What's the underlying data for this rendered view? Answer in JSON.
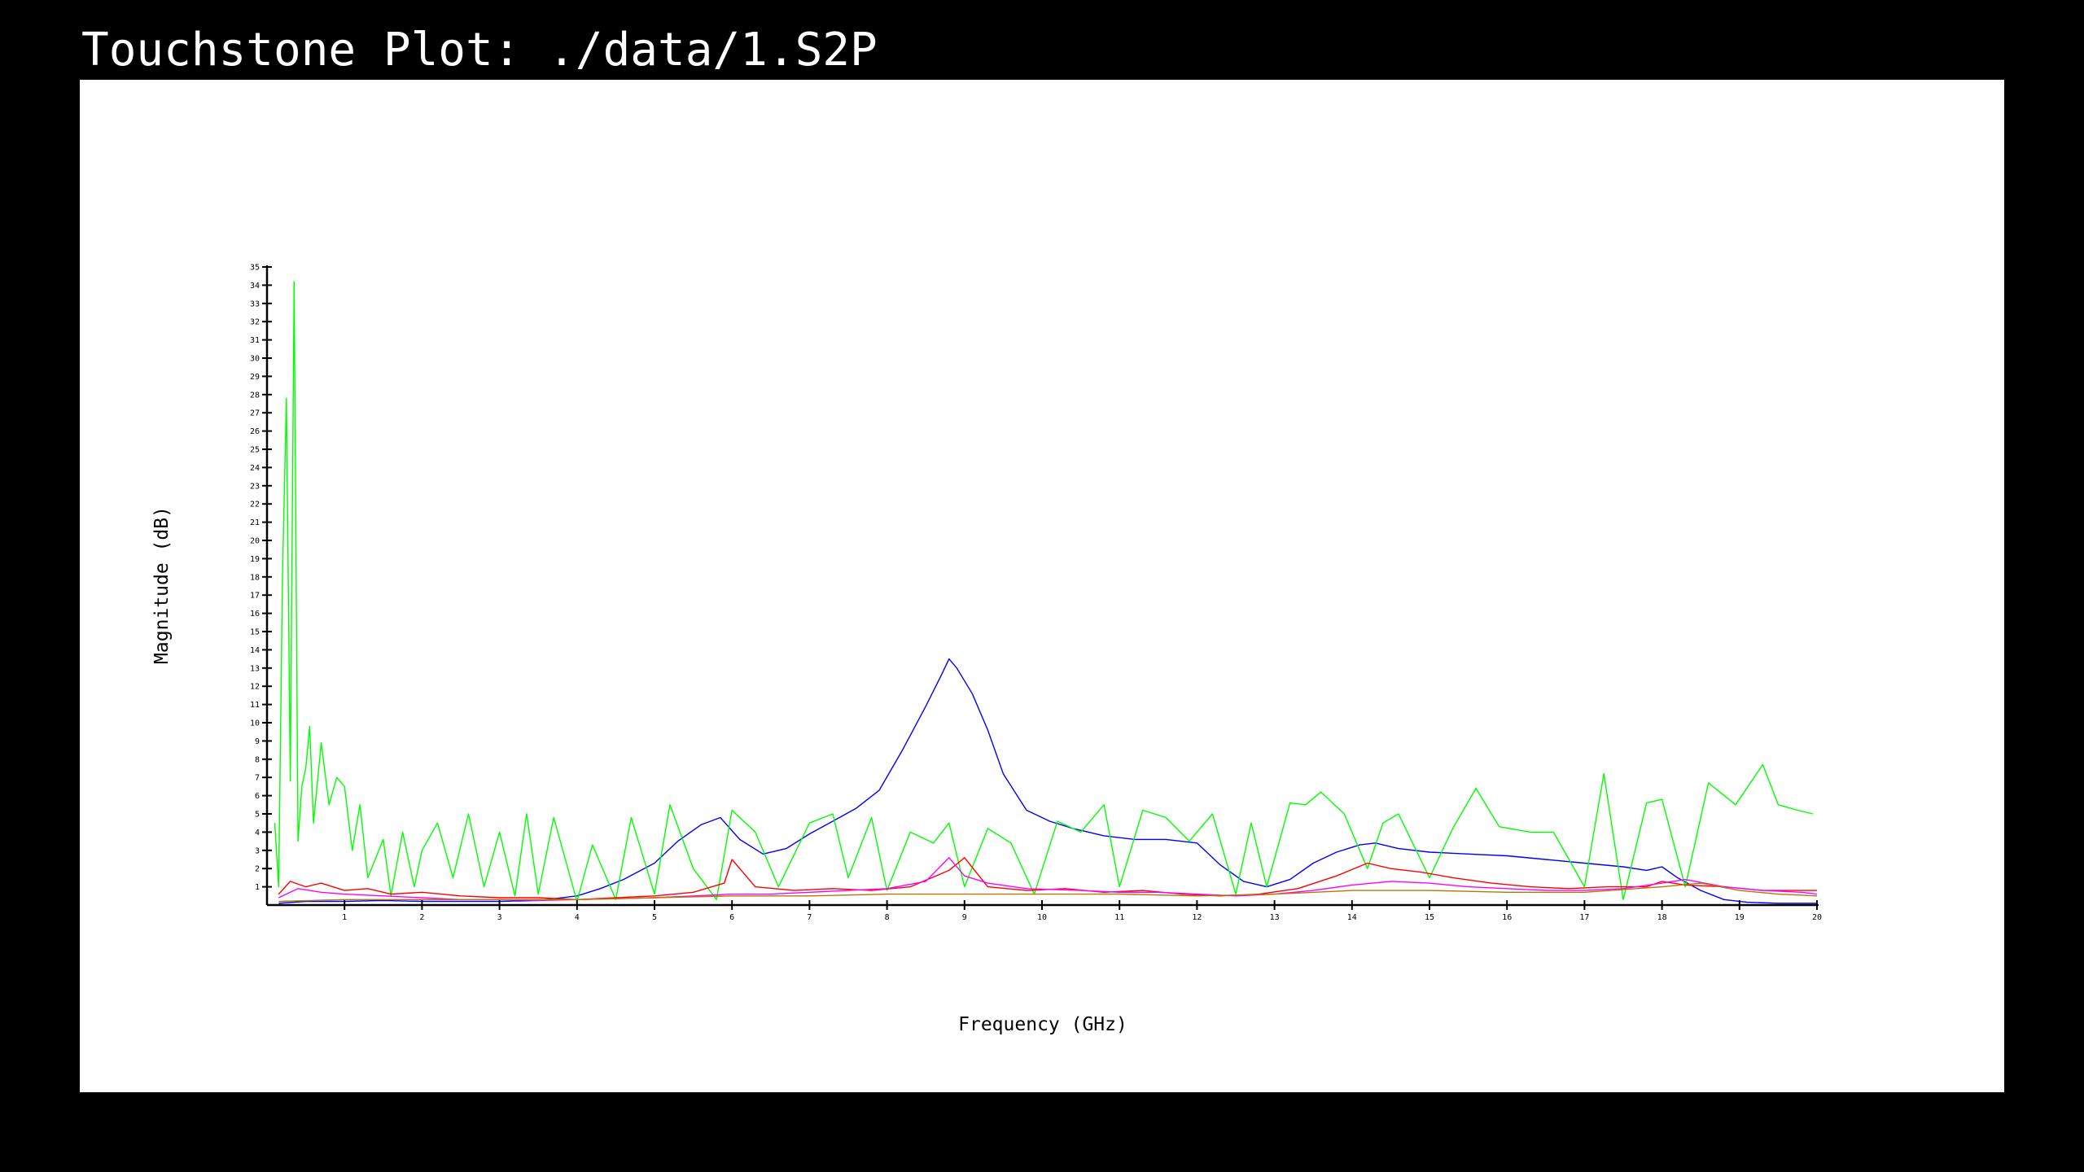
{
  "window": {
    "title": "Touchstone Plot: ./data/1.S2P"
  },
  "colors": {
    "background": "#000000",
    "plot_background": "#ffffff",
    "axis": "#000000"
  },
  "chart_data": {
    "type": "line",
    "title": "",
    "xlabel": "Frequency (GHz)",
    "ylabel": "Magnitude (dB)",
    "xlim": [
      0,
      20
    ],
    "ylim": [
      0,
      35
    ],
    "xticks": [
      1,
      2,
      3,
      4,
      5,
      6,
      7,
      8,
      9,
      10,
      11,
      12,
      13,
      14,
      15,
      16,
      17,
      18,
      19,
      20
    ],
    "yticks": [
      1,
      2,
      3,
      4,
      5,
      6,
      7,
      8,
      9,
      10,
      11,
      12,
      13,
      14,
      15,
      16,
      17,
      18,
      19,
      20,
      21,
      22,
      23,
      24,
      25,
      26,
      27,
      28,
      29,
      30,
      31,
      32,
      33,
      34,
      35
    ],
    "grid": false,
    "legend": "none",
    "series": [
      {
        "color": "#0000ff",
        "x": [
          0.15,
          0.5,
          1,
          1.5,
          2,
          2.5,
          3,
          3.5,
          4,
          4.3,
          4.6,
          5,
          5.3,
          5.6,
          5.85,
          6.1,
          6.4,
          6.7,
          7,
          7.3,
          7.6,
          7.9,
          8.2,
          8.5,
          8.7,
          8.8,
          8.9,
          9.1,
          9.3,
          9.5,
          9.8,
          10.1,
          10.4,
          10.8,
          11.2,
          11.6,
          12,
          12.3,
          12.6,
          12.9,
          13.2,
          13.5,
          13.8,
          14.1,
          14.3,
          14.6,
          15,
          15.5,
          16,
          16.5,
          17,
          17.5,
          17.8,
          18,
          18.2,
          18.5,
          18.8,
          19.1,
          19.5,
          20
        ],
        "y": [
          0.1,
          0.2,
          0.2,
          0.25,
          0.2,
          0.2,
          0.2,
          0.25,
          0.5,
          0.9,
          1.4,
          2.3,
          3.5,
          4.4,
          4.8,
          3.6,
          2.8,
          3.1,
          3.9,
          4.6,
          5.3,
          6.3,
          8.5,
          10.9,
          12.6,
          13.5,
          13.0,
          11.6,
          9.6,
          7.2,
          5.2,
          4.6,
          4.2,
          3.8,
          3.6,
          3.6,
          3.4,
          2.2,
          1.3,
          1.0,
          1.4,
          2.3,
          2.9,
          3.3,
          3.4,
          3.1,
          2.9,
          2.8,
          2.7,
          2.5,
          2.3,
          2.1,
          1.9,
          2.1,
          1.5,
          0.8,
          0.3,
          0.15,
          0.1,
          0.1
        ]
      },
      {
        "color": "#00ff00",
        "x": [
          0.1,
          0.15,
          0.2,
          0.25,
          0.3,
          0.35,
          0.4,
          0.45,
          0.5,
          0.55,
          0.6,
          0.7,
          0.8,
          0.9,
          1.0,
          1.1,
          1.2,
          1.3,
          1.5,
          1.6,
          1.75,
          1.9,
          2.0,
          2.2,
          2.4,
          2.6,
          2.8,
          3.0,
          3.2,
          3.35,
          3.5,
          3.7,
          4.0,
          4.2,
          4.5,
          4.7,
          5.0,
          5.2,
          5.5,
          5.8,
          6.0,
          6.3,
          6.6,
          7.0,
          7.3,
          7.5,
          7.8,
          8.0,
          8.3,
          8.6,
          8.8,
          9.0,
          9.3,
          9.6,
          9.9,
          10.2,
          10.5,
          10.8,
          11.0,
          11.3,
          11.6,
          11.9,
          12.2,
          12.5,
          12.7,
          12.9,
          13.2,
          13.4,
          13.6,
          13.9,
          14.2,
          14.4,
          14.6,
          15.0,
          15.3,
          15.6,
          15.9,
          16.3,
          16.6,
          17.0,
          17.25,
          17.5,
          17.8,
          18.0,
          18.3,
          18.6,
          18.95,
          19.3,
          19.5,
          19.75,
          19.95
        ],
        "y": [
          4.5,
          1.0,
          18,
          27.8,
          6.8,
          34.2,
          3.5,
          6.5,
          7.5,
          9.8,
          4.5,
          8.9,
          5.5,
          7.0,
          6.5,
          3.0,
          5.5,
          1.5,
          3.6,
          0.5,
          4.0,
          1.0,
          3.0,
          4.5,
          1.5,
          5.0,
          1.0,
          4.0,
          0.5,
          5.0,
          0.6,
          4.8,
          0.2,
          3.3,
          0.3,
          4.8,
          0.6,
          5.5,
          2.0,
          0.3,
          5.2,
          4.0,
          1.0,
          4.5,
          5.0,
          1.5,
          4.8,
          0.8,
          4.0,
          3.4,
          4.5,
          1.0,
          4.2,
          3.4,
          0.6,
          4.6,
          4.0,
          5.5,
          1.0,
          5.2,
          4.8,
          3.5,
          5.0,
          0.6,
          4.5,
          1.0,
          5.6,
          5.5,
          6.2,
          5.0,
          2.0,
          4.5,
          5.0,
          1.5,
          4.2,
          6.4,
          4.3,
          4.0,
          4.0,
          1.0,
          7.2,
          0.3,
          5.6,
          5.8,
          1.0,
          6.7,
          5.5,
          7.7,
          5.5,
          5.2,
          5.0
        ]
      },
      {
        "color": "#ff0000",
        "x": [
          0.15,
          0.3,
          0.5,
          0.7,
          1.0,
          1.3,
          1.6,
          2.0,
          2.5,
          3.0,
          3.5,
          4.0,
          4.5,
          5.0,
          5.5,
          5.9,
          6.0,
          6.3,
          6.8,
          7.3,
          7.8,
          8.3,
          8.8,
          9.0,
          9.3,
          9.8,
          10.3,
          10.8,
          11.3,
          11.8,
          12.3,
          12.8,
          13.3,
          13.8,
          14.2,
          14.5,
          14.9,
          15.3,
          15.8,
          16.3,
          16.8,
          17.3,
          17.8,
          18.0,
          18.3,
          18.8,
          19.3,
          19.8,
          20
        ],
        "y": [
          0.6,
          1.3,
          1.0,
          1.2,
          0.8,
          0.9,
          0.6,
          0.7,
          0.5,
          0.4,
          0.4,
          0.3,
          0.4,
          0.5,
          0.7,
          1.2,
          2.5,
          1.0,
          0.8,
          0.9,
          0.8,
          1.0,
          1.9,
          2.6,
          1.0,
          0.8,
          0.9,
          0.7,
          0.8,
          0.6,
          0.5,
          0.6,
          0.9,
          1.6,
          2.3,
          2.0,
          1.8,
          1.5,
          1.2,
          1.0,
          0.9,
          1.0,
          1.0,
          1.3,
          1.1,
          1.0,
          0.8,
          0.8,
          0.8
        ]
      },
      {
        "color": "#ff00ff",
        "x": [
          0.15,
          0.4,
          0.7,
          1.0,
          1.5,
          2.0,
          2.5,
          3.0,
          3.5,
          4.0,
          4.5,
          5.0,
          5.5,
          6.0,
          6.5,
          7.0,
          7.5,
          8.0,
          8.5,
          8.8,
          9.0,
          9.3,
          9.8,
          10.5,
          11.0,
          11.5,
          12.0,
          12.5,
          13.0,
          13.5,
          14.0,
          14.5,
          15.0,
          15.5,
          16.0,
          16.5,
          17.0,
          17.5,
          18.0,
          18.3,
          18.8,
          19.3,
          19.8,
          20
        ],
        "y": [
          0.4,
          0.9,
          0.7,
          0.6,
          0.5,
          0.4,
          0.3,
          0.3,
          0.25,
          0.3,
          0.35,
          0.4,
          0.5,
          0.6,
          0.6,
          0.7,
          0.8,
          0.9,
          1.3,
          2.6,
          1.6,
          1.2,
          0.9,
          0.8,
          0.7,
          0.7,
          0.6,
          0.5,
          0.6,
          0.8,
          1.1,
          1.3,
          1.2,
          1.0,
          0.9,
          0.8,
          0.8,
          0.9,
          1.2,
          1.4,
          1.0,
          0.8,
          0.7,
          0.6
        ]
      },
      {
        "color": "#b47800",
        "x": [
          0.15,
          1,
          2,
          3,
          4,
          5,
          6,
          7,
          8,
          9,
          10,
          11,
          12,
          13,
          14,
          15,
          16,
          17,
          18,
          18.5,
          19,
          19.5,
          20
        ],
        "y": [
          0.2,
          0.3,
          0.3,
          0.3,
          0.3,
          0.4,
          0.5,
          0.5,
          0.6,
          0.6,
          0.6,
          0.6,
          0.5,
          0.6,
          0.8,
          0.8,
          0.7,
          0.7,
          1.0,
          1.2,
          0.8,
          0.6,
          0.5
        ]
      }
    ]
  }
}
